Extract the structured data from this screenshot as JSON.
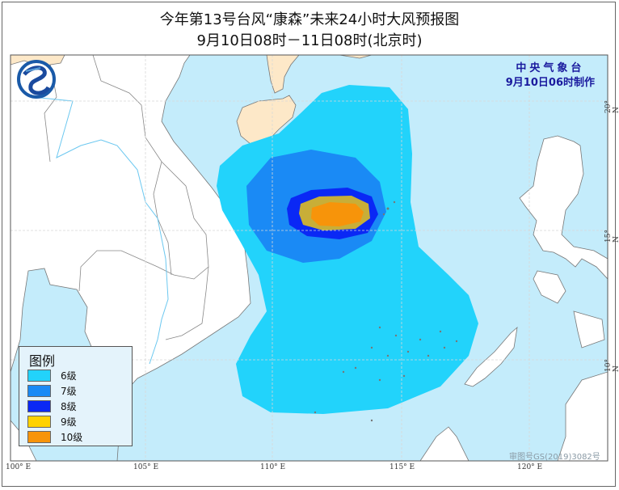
{
  "title": {
    "line1": "今年第13号台风“康森”未来24小时大风预报图",
    "line2": "9月10日08时－11日08时(北京时)"
  },
  "agency": {
    "name": "中央气象台",
    "issued": "9月10日06时制作"
  },
  "logo": {
    "icon": "cma-logo-icon"
  },
  "legend": {
    "title": "图例",
    "items": [
      {
        "label": "6级",
        "color": "#22d3fb"
      },
      {
        "label": "7级",
        "color": "#1a8af5"
      },
      {
        "label": "8级",
        "color": "#0a28f5"
      },
      {
        "label": "9级",
        "color": "#ffd200"
      },
      {
        "label": "10级",
        "color": "#f7940a"
      }
    ]
  },
  "axes": {
    "longitude": [
      "100° E",
      "105° E",
      "110° E",
      "115° E",
      "120° E"
    ],
    "latitude": [
      "20° N",
      "15° N",
      "10° N"
    ]
  },
  "review_number": "审图号GS(2019)3082号",
  "colors": {
    "sea": "#c4ecfb",
    "land": "#ffffff",
    "china_land": "#fde8c8",
    "grade9_on_map": "#c8ae38"
  }
}
